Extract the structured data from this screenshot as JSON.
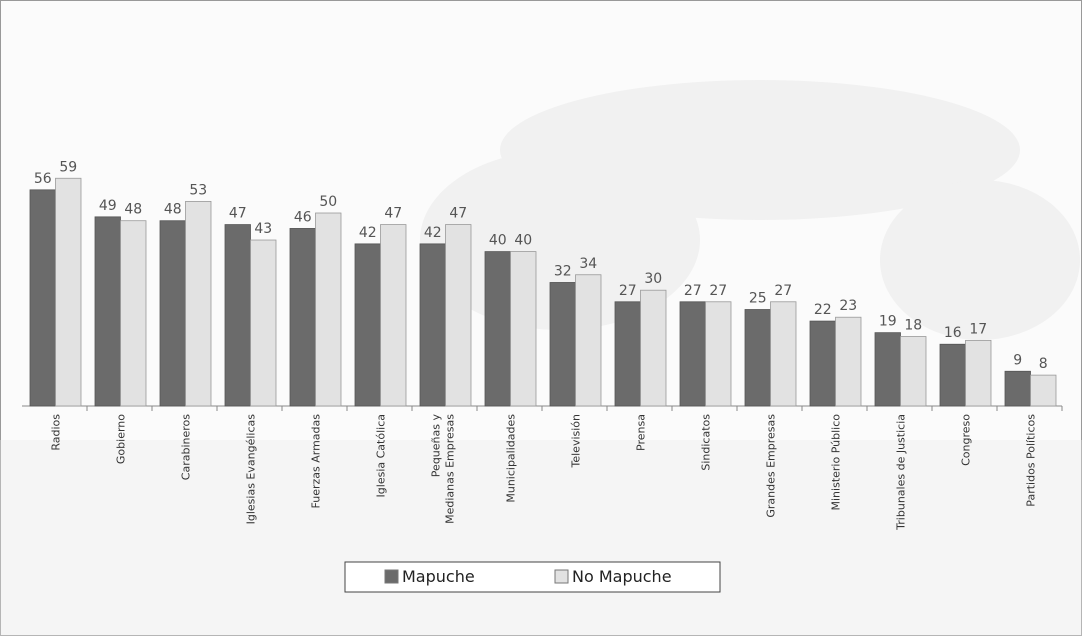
{
  "chart_data": {
    "type": "bar",
    "categories": [
      "Radios",
      "Gobierno",
      "Carabineros",
      "Iglesias Evangélicas",
      "Fuerzas Armadas",
      "Iglesia Católica",
      "Pequeñas y Medianas Empresas",
      "Municipalidades",
      "Televisión",
      "Prensa",
      "Sindicatos",
      "Grandes Empresas",
      "Ministerio Público",
      "Tribunales de Justicia",
      "Congreso",
      "Partidos Políticos"
    ],
    "series": [
      {
        "name": "Mapuche",
        "color": "#6b6b6b",
        "values": [
          56,
          49,
          48,
          47,
          46,
          42,
          42,
          40,
          32,
          27,
          27,
          25,
          22,
          19,
          16,
          9
        ]
      },
      {
        "name": "No Mapuche",
        "color": "#e2e2e2",
        "values": [
          59,
          48,
          53,
          43,
          50,
          47,
          47,
          40,
          34,
          30,
          27,
          27,
          23,
          18,
          17,
          8
        ]
      }
    ]
  }
}
